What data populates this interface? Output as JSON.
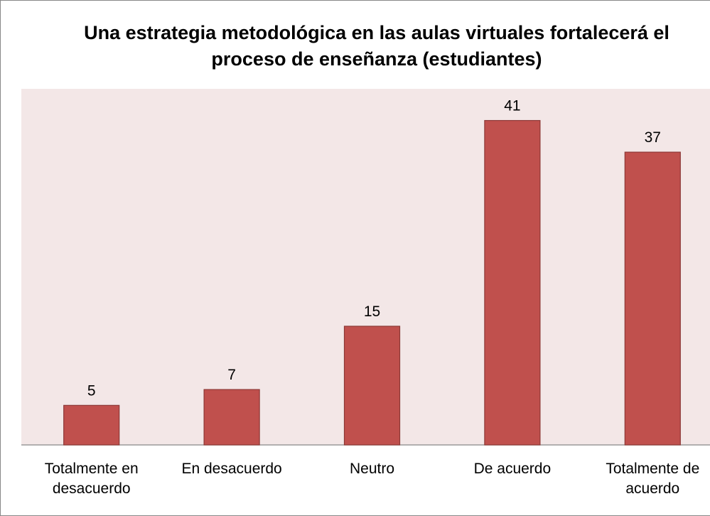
{
  "chart_data": {
    "type": "bar",
    "title": "Una estrategia metodológica en las aulas virtuales fortalecerá el proceso de enseñanza (estudiantes)",
    "categories": [
      "Totalmente en desacuerdo",
      "En desacuerdo",
      "Neutro",
      "De acuerdo",
      "Totalmente de acuerdo"
    ],
    "values": [
      5,
      7,
      15,
      41,
      37
    ],
    "color": "#c0504d",
    "ylim": [
      0,
      45
    ]
  }
}
